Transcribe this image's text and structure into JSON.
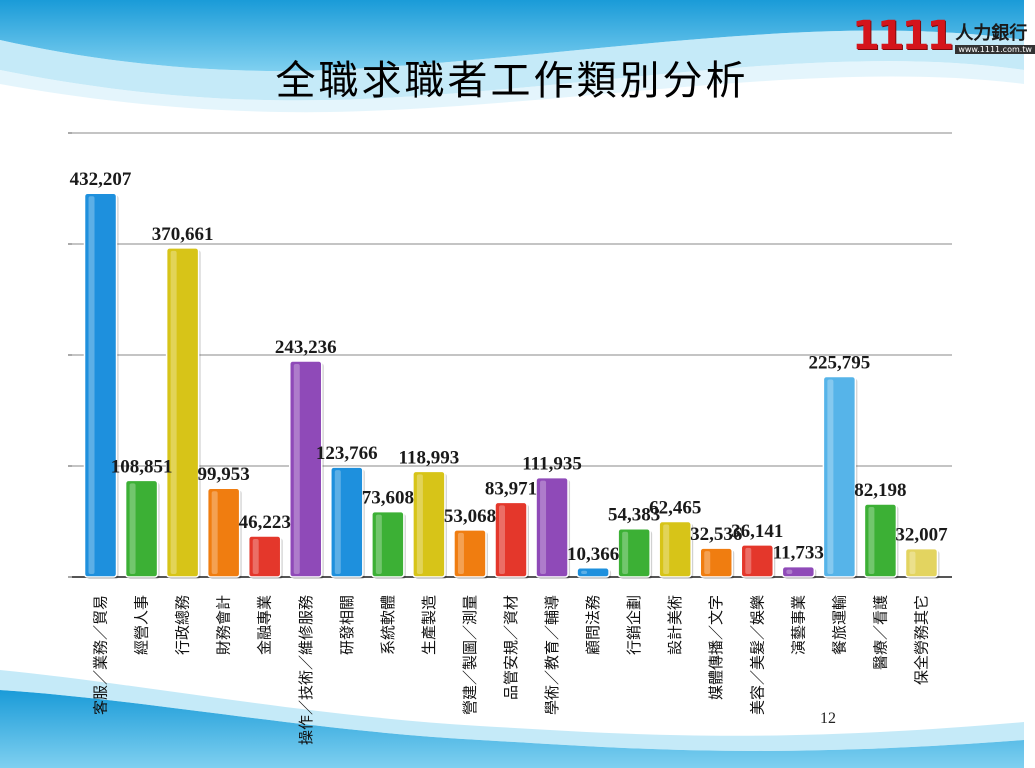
{
  "slide": {
    "title": "全職求職者工作類別分析",
    "page_number": "12",
    "logo": {
      "number": "1111",
      "name": "人力銀行",
      "url": "www.1111.com.tw"
    }
  },
  "chart_data": {
    "type": "bar",
    "title": "全職求職者工作類別分析",
    "xlabel": "",
    "ylabel": "",
    "ylim": [
      0,
      500000
    ],
    "grid": true,
    "legend": "none",
    "categories": [
      "客服／業務／貿易",
      "經營人事",
      "行政總務",
      "財務會計",
      "金融專業",
      "操作／技術／維修服務",
      "研發相關",
      "系統軟體",
      "生產製造",
      "營建／製圖／測量",
      "品管安規／資材",
      "學術／教育／輔導",
      "顧問法務",
      "行銷企劃",
      "設計美術",
      "媒體傳播／文字",
      "美容／美髮／娛樂",
      "演藝事業",
      "餐旅運輸",
      "醫療／看護",
      "保全勞務其它"
    ],
    "value_labels": [
      "432,207",
      "108,851",
      "370,661",
      "99,953",
      "46,223",
      "243,236",
      "123,766",
      "73,608",
      "118,993",
      "53,068",
      "83,971",
      "111,935",
      "10,366",
      "54,383",
      "62,465",
      "32,536",
      "36,141",
      "11,733",
      "225,795",
      "82,198",
      "32,007"
    ],
    "values": [
      432207,
      108851,
      370661,
      99953,
      46223,
      243236,
      123766,
      73608,
      118993,
      53068,
      83971,
      111935,
      10366,
      54383,
      62465,
      32536,
      36141,
      11733,
      225795,
      82198,
      32007
    ],
    "colors": [
      "#1e90dd",
      "#3cb035",
      "#d7c418",
      "#f07d10",
      "#e4372b",
      "#8f4ab8",
      "#1e90dd",
      "#3cb035",
      "#d7c418",
      "#f07d10",
      "#e4372b",
      "#8f4ab8",
      "#1e90dd",
      "#3cb035",
      "#d7c418",
      "#f07d10",
      "#e4372b",
      "#8f4ab8",
      "#56b4e9",
      "#3cb035",
      "#e3d460"
    ]
  }
}
